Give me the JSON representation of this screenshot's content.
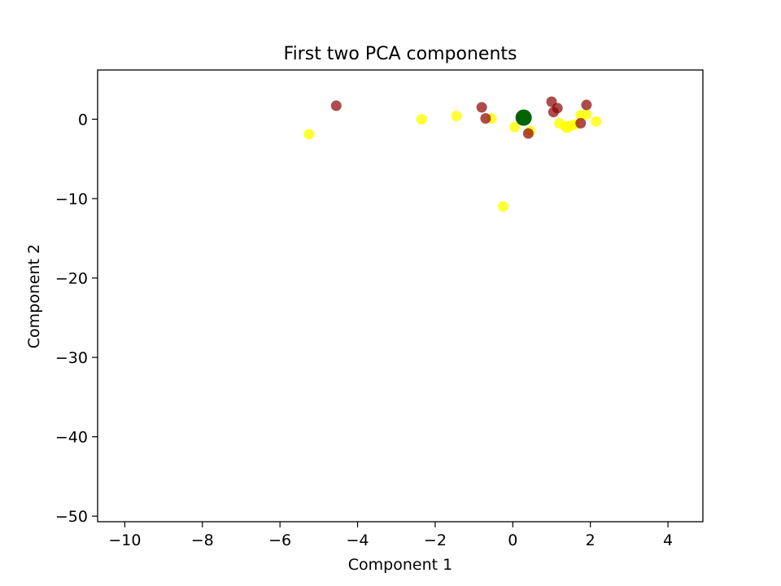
{
  "chart_data": {
    "type": "scatter",
    "title": "First two PCA components",
    "xlabel": "Component 1",
    "ylabel": "Component 2",
    "xlim": [
      -10.7,
      4.9
    ],
    "ylim": [
      -50.7,
      6.2
    ],
    "xticks": [
      -10,
      -8,
      -6,
      -4,
      -2,
      0,
      2,
      4
    ],
    "yticks": [
      0,
      -10,
      -20,
      -30,
      -40,
      -50
    ],
    "grid": false,
    "series": [
      {
        "color": "#ffff00",
        "alpha": 0.8,
        "points": [
          [
            -5.25,
            -1.9
          ],
          [
            -2.35,
            0.0
          ],
          [
            -1.45,
            0.4
          ],
          [
            -0.55,
            0.1
          ],
          [
            0.05,
            -1.0
          ],
          [
            0.45,
            -1.5
          ],
          [
            -0.25,
            -11.0
          ],
          [
            1.2,
            -0.5
          ],
          [
            1.35,
            -0.9
          ],
          [
            1.4,
            -1.1
          ],
          [
            1.5,
            -0.8
          ],
          [
            1.6,
            -0.7
          ],
          [
            1.75,
            0.5
          ],
          [
            1.9,
            0.6
          ],
          [
            2.15,
            -0.3
          ]
        ]
      },
      {
        "color": "#8b0000",
        "alpha": 0.7,
        "points": [
          [
            -4.55,
            1.7
          ],
          [
            -0.8,
            1.5
          ],
          [
            -0.7,
            0.1
          ],
          [
            0.4,
            -1.8
          ],
          [
            1.0,
            2.2
          ],
          [
            1.05,
            0.9
          ],
          [
            1.15,
            1.4
          ],
          [
            1.75,
            -0.5
          ],
          [
            1.9,
            1.8
          ]
        ]
      },
      {
        "color": "#006400",
        "alpha": 1.0,
        "points": [
          [
            0.28,
            0.2
          ]
        ]
      }
    ]
  }
}
